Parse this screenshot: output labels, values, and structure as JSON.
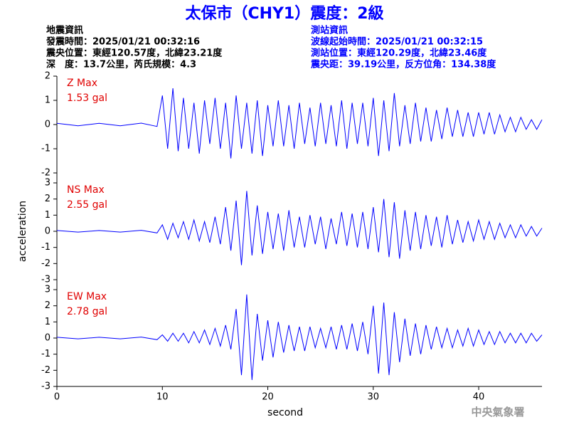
{
  "header": {
    "title": "太保市（CHY1）震度：2級",
    "left_info": [
      "地震資訊",
      "發震時間：2025/01/21 00:32:16",
      "震央位置：東經120.57度，北緯23.21度",
      "深　度：13.7公里，芮氏規模：4.3"
    ],
    "right_info": [
      "測站資訊",
      "波線起始時間：2025/01/21 00:32:15",
      "測站位置：東經120.29度，北緯23.46度",
      "震央距：39.19公里，反方位角：134.38度"
    ]
  },
  "watermark": "中央氣象署",
  "chart_data": [
    {
      "type": "line",
      "label": "Z Max",
      "max_label": "1.53 gal",
      "color": "#0000ff",
      "xlim": [
        0,
        46
      ],
      "ylim": [
        -2,
        2
      ],
      "yticks": [
        -2,
        -1,
        0,
        1,
        2
      ],
      "x": [
        0,
        2,
        4,
        6,
        8,
        9.5,
        10,
        10.5,
        11,
        11.5,
        12,
        12.5,
        13,
        13.5,
        14,
        14.5,
        15,
        15.5,
        16,
        16.5,
        17,
        17.5,
        18,
        18.5,
        19,
        19.5,
        20,
        20.5,
        21,
        21.5,
        22,
        22.5,
        23,
        23.5,
        24,
        24.5,
        25,
        25.5,
        26,
        26.5,
        27,
        27.5,
        28,
        28.5,
        29,
        29.5,
        30,
        30.5,
        31,
        31.5,
        32,
        32.5,
        33,
        33.5,
        34,
        34.5,
        35,
        35.5,
        36,
        36.5,
        37,
        37.5,
        38,
        38.5,
        39,
        39.5,
        40,
        40.5,
        41,
        41.5,
        42,
        42.5,
        43,
        43.5,
        44,
        44.5,
        45,
        45.5,
        46
      ],
      "values": [
        0.05,
        -0.05,
        0.05,
        -0.05,
        0.06,
        -0.08,
        1.2,
        -1.0,
        1.5,
        -1.1,
        1.1,
        -1.0,
        0.9,
        -1.2,
        1.0,
        -0.8,
        1.1,
        -1.0,
        0.9,
        -1.4,
        1.2,
        -1.0,
        0.9,
        -1.2,
        1.0,
        -1.3,
        0.8,
        -0.9,
        1.0,
        -0.9,
        0.8,
        -1.0,
        0.9,
        -0.8,
        0.7,
        -0.9,
        0.9,
        -0.8,
        0.8,
        -0.9,
        1.0,
        -1.0,
        0.9,
        -0.8,
        0.9,
        -0.9,
        1.1,
        -1.3,
        1.0,
        -1.1,
        1.3,
        -0.9,
        0.8,
        -0.8,
        0.9,
        -0.7,
        0.7,
        -0.7,
        0.6,
        -0.6,
        0.7,
        -0.5,
        0.6,
        -0.5,
        0.5,
        -0.5,
        0.5,
        -0.4,
        0.5,
        -0.4,
        0.4,
        -0.3,
        0.3,
        -0.3,
        0.3,
        -0.2,
        0.2,
        -0.2,
        0.2
      ]
    },
    {
      "type": "line",
      "label": "NS Max",
      "max_label": "2.55 gal",
      "color": "#0000ff",
      "ylabel": "acceleration",
      "xlim": [
        0,
        46
      ],
      "ylim": [
        -3,
        3
      ],
      "yticks": [
        -3,
        -2,
        -1,
        0,
        1,
        2,
        3
      ],
      "x": [
        0,
        2,
        4,
        6,
        8,
        9.5,
        10,
        10.5,
        11,
        11.5,
        12,
        12.5,
        13,
        13.5,
        14,
        14.5,
        15,
        15.5,
        16,
        16.5,
        17,
        17.5,
        18,
        18.5,
        19,
        19.5,
        20,
        20.5,
        21,
        21.5,
        22,
        22.5,
        23,
        23.5,
        24,
        24.5,
        25,
        25.5,
        26,
        26.5,
        27,
        27.5,
        28,
        28.5,
        29,
        29.5,
        30,
        30.5,
        31,
        31.5,
        32,
        32.5,
        33,
        33.5,
        34,
        34.5,
        35,
        35.5,
        36,
        36.5,
        37,
        37.5,
        38,
        38.5,
        39,
        39.5,
        40,
        40.5,
        41,
        41.5,
        42,
        42.5,
        43,
        43.5,
        44,
        44.5,
        45,
        45.5,
        46
      ],
      "values": [
        0.05,
        -0.05,
        0.05,
        -0.05,
        0.06,
        -0.1,
        0.4,
        -0.5,
        0.5,
        -0.4,
        0.6,
        -0.5,
        0.7,
        -0.6,
        0.6,
        -0.7,
        0.9,
        -0.8,
        1.5,
        -1.2,
        1.9,
        -2.1,
        2.5,
        -1.5,
        1.6,
        -1.4,
        1.2,
        -1.1,
        1.1,
        -1.2,
        1.3,
        -1.0,
        0.9,
        -1.0,
        1.0,
        -0.8,
        0.9,
        -1.1,
        0.8,
        -0.8,
        1.2,
        -0.9,
        1.1,
        -1.0,
        1.2,
        -1.1,
        1.5,
        -1.3,
        2.0,
        -1.6,
        1.8,
        -1.7,
        1.3,
        -1.2,
        1.2,
        -1.1,
        1.0,
        -0.9,
        0.9,
        -1.0,
        1.0,
        -0.8,
        0.7,
        -0.7,
        0.6,
        -0.6,
        0.7,
        -0.5,
        0.6,
        -0.5,
        0.5,
        -0.4,
        0.4,
        -0.4,
        0.4,
        -0.3,
        0.3,
        -0.3,
        0.2
      ]
    },
    {
      "type": "line",
      "label": "EW Max",
      "max_label": "2.78 gal",
      "color": "#0000ff",
      "xlabel": "second",
      "xlim": [
        0,
        46
      ],
      "ylim": [
        -3,
        3
      ],
      "yticks": [
        -3,
        -2,
        -1,
        0,
        1,
        2,
        3
      ],
      "xticks": [
        0,
        10,
        20,
        30,
        40
      ],
      "x": [
        0,
        2,
        4,
        6,
        8,
        9.5,
        10,
        10.5,
        11,
        11.5,
        12,
        12.5,
        13,
        13.5,
        14,
        14.5,
        15,
        15.5,
        16,
        16.5,
        17,
        17.5,
        18,
        18.5,
        19,
        19.5,
        20,
        20.5,
        21,
        21.5,
        22,
        22.5,
        23,
        23.5,
        24,
        24.5,
        25,
        25.5,
        26,
        26.5,
        27,
        27.5,
        28,
        28.5,
        29,
        29.5,
        30,
        30.5,
        31,
        31.5,
        32,
        32.5,
        33,
        33.5,
        34,
        34.5,
        35,
        35.5,
        36,
        36.5,
        37,
        37.5,
        38,
        38.5,
        39,
        39.5,
        40,
        40.5,
        41,
        41.5,
        42,
        42.5,
        43,
        43.5,
        44,
        44.5,
        45,
        45.5,
        46
      ],
      "values": [
        0.05,
        -0.05,
        0.05,
        -0.05,
        0.06,
        -0.1,
        0.2,
        -0.2,
        0.3,
        -0.2,
        0.3,
        -0.3,
        0.4,
        -0.3,
        0.5,
        -0.4,
        0.6,
        -0.5,
        0.8,
        -0.7,
        1.8,
        -2.3,
        2.7,
        -2.6,
        1.5,
        -1.4,
        1.1,
        -1.2,
        1.0,
        -0.9,
        0.8,
        -0.8,
        0.7,
        -0.8,
        0.7,
        -0.6,
        0.6,
        -0.6,
        0.7,
        -0.7,
        0.8,
        -0.7,
        0.9,
        -0.8,
        1.0,
        -1.0,
        2.0,
        -2.2,
        2.2,
        -2.3,
        1.6,
        -1.5,
        1.2,
        -1.1,
        0.9,
        -1.0,
        0.8,
        -0.7,
        0.7,
        -0.6,
        0.6,
        -0.6,
        0.5,
        -0.5,
        0.6,
        -0.5,
        0.5,
        -0.4,
        0.4,
        -0.4,
        0.4,
        -0.3,
        0.3,
        -0.3,
        0.3,
        -0.3,
        0.3,
        -0.2,
        0.2
      ]
    }
  ]
}
